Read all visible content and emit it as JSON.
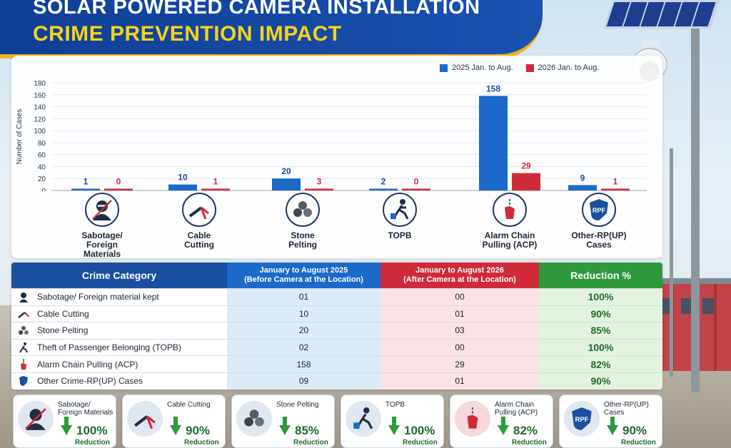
{
  "header": {
    "title_line1": "SOLAR POWERED CAMERA INSTALLATION",
    "title_line2": "CRIME PREVENTION IMPACT"
  },
  "colors": {
    "series_2025": "#1b69c8",
    "series_2026": "#cf2a3a",
    "reduction": "#2e9a3c",
    "banner": "#0e3f95"
  },
  "chart_data": {
    "type": "bar",
    "ylabel": "Number of Cases",
    "ylim": [
      0,
      180
    ],
    "yticks": [
      0,
      20,
      40,
      60,
      80,
      100,
      120,
      140,
      160,
      180
    ],
    "categories": [
      "Sabotage/ Foreign Materials",
      "Cable Cutting",
      "Stone Pelting",
      "TOPB",
      "Alarm Chain Pulling (ACP)",
      "Other-RP(UP) Cases"
    ],
    "series": [
      {
        "name": "2025 Jan. to Aug.",
        "values": [
          1,
          10,
          20,
          2,
          158,
          9
        ]
      },
      {
        "name": "2026 Jan. to Aug.",
        "values": [
          0,
          1,
          3,
          0,
          29,
          1
        ]
      }
    ],
    "legend_position": "top-right",
    "grid": true
  },
  "categories_display": [
    {
      "line1": "Sabotage/",
      "line2": "Foreign",
      "line3": "Materials",
      "icon": "masked-person-icon"
    },
    {
      "line1": "Cable",
      "line2": "Cutting",
      "line3": "",
      "icon": "cable-cutter-icon"
    },
    {
      "line1": "Stone",
      "line2": "Pelting",
      "line3": "",
      "icon": "stones-icon"
    },
    {
      "line1": "TOPB",
      "line2": "",
      "line3": "",
      "icon": "thief-running-icon"
    },
    {
      "line1": "Alarm Chain",
      "line2": "Pulling (ACP)",
      "line3": "",
      "icon": "alarm-chain-icon"
    },
    {
      "line1": "Other-RP(UP)",
      "line2": "Cases",
      "line3": "",
      "icon": "rpf-shield-icon"
    }
  ],
  "table": {
    "headers": {
      "category": "Crime Category",
      "y2025_line1": "January to August 2025",
      "y2025_line2": "(Before Camera at the Location)",
      "y2026_line1": "January to August 2026",
      "y2026_line2": "(After Camera at the Location)",
      "reduction": "Reduction %"
    },
    "rows": [
      {
        "category": "Sabotage/ Foreign material kept",
        "y2025": "01",
        "y2026": "00",
        "reduction": "100%"
      },
      {
        "category": "Cable Cutting",
        "y2025": "10",
        "y2026": "01",
        "reduction": "90%"
      },
      {
        "category": "Stone Pelting",
        "y2025": "20",
        "y2026": "03",
        "reduction": "85%"
      },
      {
        "category": "Theft of Passenger Belonging (TOPB)",
        "y2025": "02",
        "y2026": "00",
        "reduction": "100%"
      },
      {
        "category": "Alarm Chain Pulling (ACP)",
        "y2025": "158",
        "y2026": "29",
        "reduction": "82%"
      },
      {
        "category": "Other Crime-RP(UP) Cases",
        "y2025": "09",
        "y2026": "01",
        "reduction": "90%"
      }
    ]
  },
  "cards": [
    {
      "line1": "Sabotage/",
      "line2": "Foreign Materials",
      "pct": "100%",
      "label": "Reduction"
    },
    {
      "line1": "Cable Cutting",
      "line2": "",
      "pct": "90%",
      "label": "Reduction"
    },
    {
      "line1": "Stone Pelting",
      "line2": "",
      "pct": "85%",
      "label": "Reduction"
    },
    {
      "line1": "TOPB",
      "line2": "",
      "pct": "100%",
      "label": "Reduction"
    },
    {
      "line1": "Alarm Chain",
      "line2": "Pulling (ACP)",
      "pct": "82%",
      "label": "Reduction"
    },
    {
      "line1": "Other-RP(UP)",
      "line2": "Cases",
      "pct": "90%",
      "label": "Reduction"
    }
  ]
}
